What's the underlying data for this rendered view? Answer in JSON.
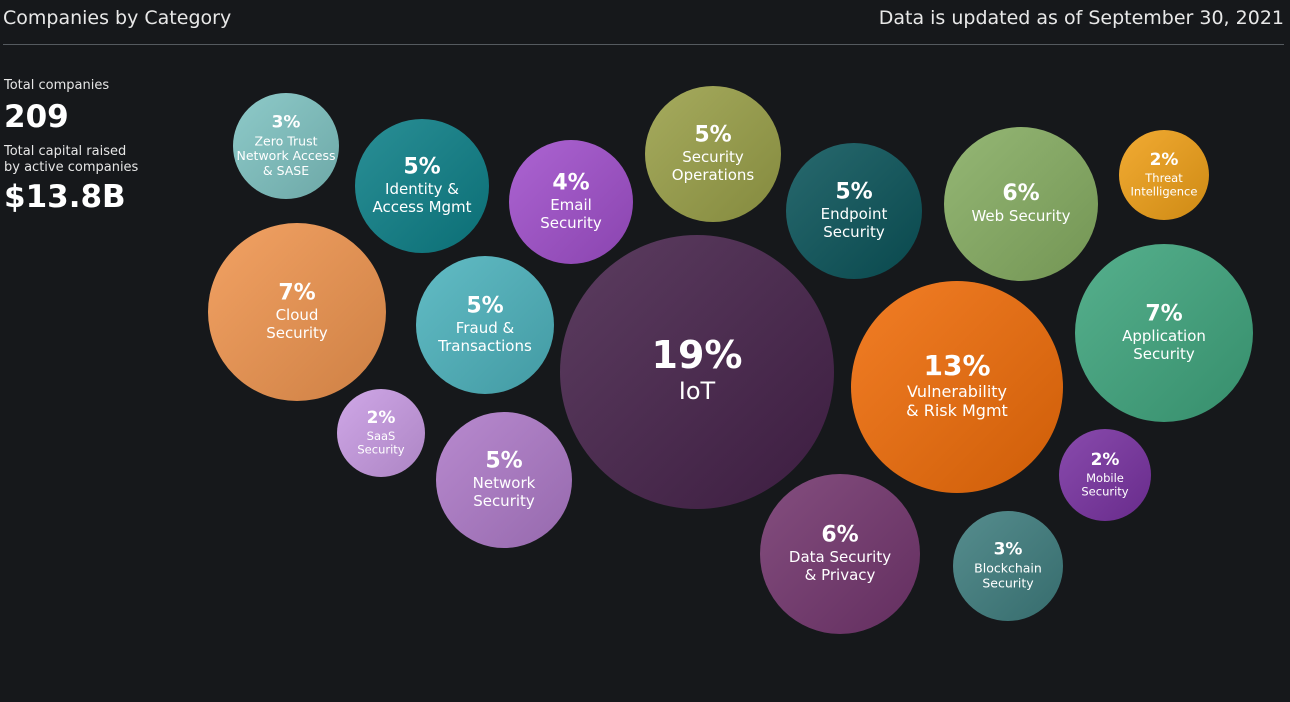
{
  "header": {
    "title": "Companies by Category",
    "updated": "Data is updated as of September 30, 2021"
  },
  "stats": {
    "total_companies_label": "Total companies",
    "total_companies_value": "209",
    "capital_label_line1": "Total capital raised",
    "capital_label_line2": "by active companies",
    "capital_value": "$13.8B"
  },
  "chart_data": {
    "type": "bubble",
    "title": "Companies by Category",
    "unit": "% of companies",
    "bubbles": [
      {
        "label": [
          "Zero Trust",
          "Network Access",
          "& SASE"
        ],
        "value": 3,
        "pct_text": "3%",
        "color": "#7fc3c2"
      },
      {
        "label": [
          "Identity &",
          "Access Mgmt"
        ],
        "value": 5,
        "pct_text": "5%",
        "color": "#0d8088"
      },
      {
        "label": [
          "Email",
          "Security"
        ],
        "value": 4,
        "pct_text": "4%",
        "color": "#a14fcc"
      },
      {
        "label": [
          "Security",
          "Operations"
        ],
        "value": 5,
        "pct_text": "5%",
        "color": "#9aa048"
      },
      {
        "label": [
          "Endpoint",
          "Security"
        ],
        "value": 5,
        "pct_text": "5%",
        "color": "#0b545a"
      },
      {
        "label": [
          "Web Security"
        ],
        "value": 6,
        "pct_text": "6%",
        "color": "#86ad62"
      },
      {
        "label": [
          "Threat",
          "Intelligence"
        ],
        "value": 2,
        "pct_text": "2%",
        "color": "#f0a017"
      },
      {
        "label": [
          "Cloud",
          "Security"
        ],
        "value": 7,
        "pct_text": "7%",
        "color": "#f0954f"
      },
      {
        "label": [
          "Fraud &",
          "Transactions"
        ],
        "value": 5,
        "pct_text": "5%",
        "color": "#4db3bd"
      },
      {
        "label": [
          "IoT"
        ],
        "value": 19,
        "pct_text": "19%",
        "color": "#46224a"
      },
      {
        "label": [
          "Vulnerability",
          "& Risk Mgmt"
        ],
        "value": 13,
        "pct_text": "13%",
        "color": "#f06c08"
      },
      {
        "label": [
          "Application",
          "Security"
        ],
        "value": 7,
        "pct_text": "7%",
        "color": "#3fa57e"
      },
      {
        "label": [
          "SaaS",
          "Security"
        ],
        "value": 2,
        "pct_text": "2%",
        "color": "#c99be4"
      },
      {
        "label": [
          "Network",
          "Security"
        ],
        "value": 5,
        "pct_text": "5%",
        "color": "#ae7ac9"
      },
      {
        "label": [
          "Mobile",
          "Security"
        ],
        "value": 2,
        "pct_text": "2%",
        "color": "#7932a2"
      },
      {
        "label": [
          "Data Security",
          "& Privacy"
        ],
        "value": 6,
        "pct_text": "6%",
        "color": "#73366e"
      },
      {
        "label": [
          "Blockchain",
          "Security"
        ],
        "value": 3,
        "pct_text": "3%",
        "color": "#3f7d7f"
      }
    ]
  }
}
